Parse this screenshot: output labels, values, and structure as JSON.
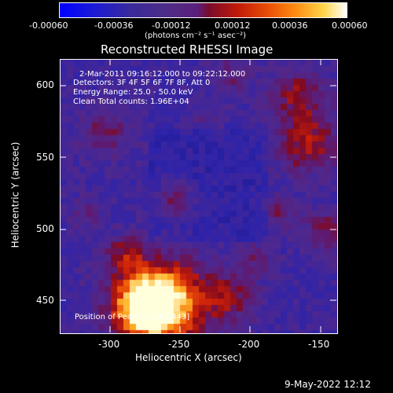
{
  "colorbar": {
    "tick_labels": [
      "-0.00060",
      "-0.00036",
      "-0.00012",
      "0.00012",
      "0.00036",
      "0.00060"
    ],
    "units": "(photons cm⁻² s⁻¹ asec⁻²)"
  },
  "plot": {
    "title": "Reconstructed RHESSI Image",
    "info_lines": [
      "2-Mar-2011 09:16:12.000 to 09:22:12.000",
      "Detectors: 3F 4F 5F 6F 7F 8F, Att 0",
      "Energy Range: 25.0 - 50.0 keV",
      "Clean     Total counts: 1.96E+04"
    ],
    "peak_text": "Position of Peak = [-263,443]",
    "xlabel": "Heliocentric X (arcsec)",
    "ylabel": "Heliocentric Y (arcsec)",
    "x_ticks": [
      "-300",
      "-250",
      "-200",
      "-150"
    ],
    "y_ticks": [
      "600",
      "550",
      "500",
      "450"
    ]
  },
  "footer_date": "9-May-2022 12:12"
}
